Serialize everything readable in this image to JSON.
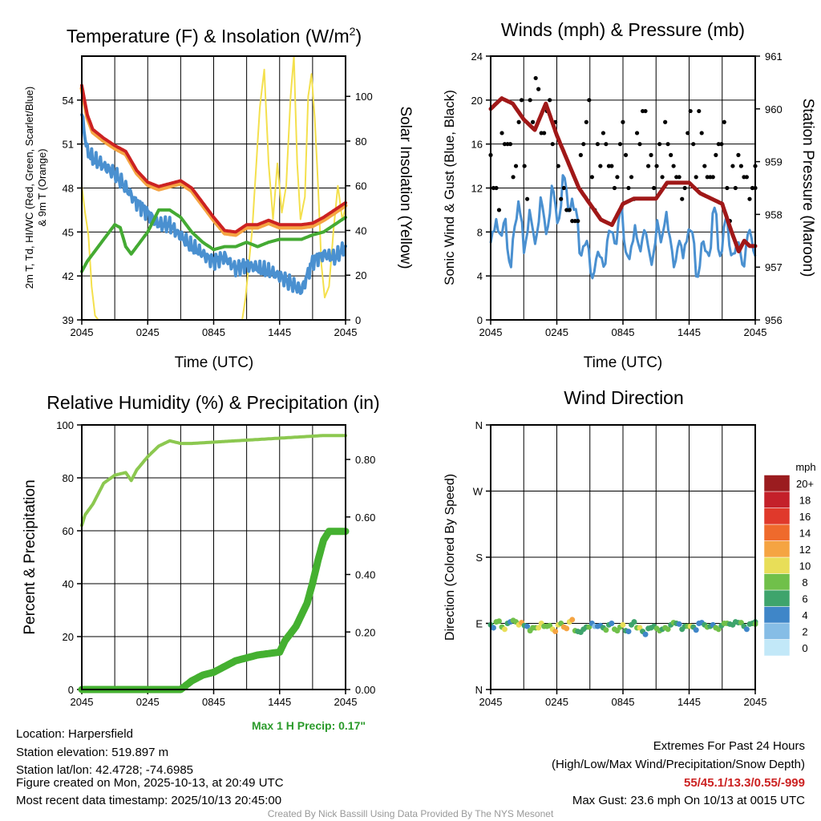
{
  "chart_data": [
    {
      "type": "line",
      "title": "Temperature (F) & Insolation (W/m2)",
      "title_main": "Temperature (F) & Insolation (W/m",
      "title_sup": "2",
      "title_end": ")",
      "xlabel": "Time (UTC)",
      "ylabel_line1": "2m T, Td, HI/WC (Red, Green, Scarlet/Blue)",
      "ylabel_line2": "& 9m T (Orange)",
      "ylabel_right": "Solar Insolation (Yellow)",
      "xlim": [
        0,
        24
      ],
      "xticks": [
        "2045",
        "0245",
        "0845",
        "1445",
        "2045"
      ],
      "ylim": [
        39,
        57
      ],
      "yticks": [
        "39",
        "42",
        "45",
        "48",
        "51",
        "54"
      ],
      "ylim_right": [
        0,
        118
      ],
      "yticks_right": [
        "0",
        "20",
        "40",
        "60",
        "80",
        "100"
      ],
      "series": [
        {
          "name": "Solar Insolation",
          "axis": "right",
          "color": "#f4e04d",
          "width": 2,
          "points": [
            [
              0,
              60
            ],
            [
              0.3,
              48
            ],
            [
              0.6,
              38
            ],
            [
              0.9,
              15
            ],
            [
              1.2,
              2
            ],
            [
              1.5,
              0
            ],
            [
              14.6,
              0
            ],
            [
              14.9,
              10
            ],
            [
              15.5,
              40
            ],
            [
              16.2,
              95
            ],
            [
              16.6,
              112
            ],
            [
              17.0,
              70
            ],
            [
              17.4,
              45
            ],
            [
              17.8,
              70
            ],
            [
              18.2,
              48
            ],
            [
              18.6,
              60
            ],
            [
              19.0,
              100
            ],
            [
              19.3,
              118
            ],
            [
              19.6,
              70
            ],
            [
              19.9,
              45
            ],
            [
              20.3,
              55
            ],
            [
              20.6,
              100
            ],
            [
              20.9,
              110
            ],
            [
              21.2,
              90
            ],
            [
              21.5,
              60
            ],
            [
              21.8,
              25
            ],
            [
              22.1,
              10
            ],
            [
              22.5,
              15
            ],
            [
              22.9,
              40
            ],
            [
              23.3,
              60
            ],
            [
              23.7,
              45
            ],
            [
              24,
              50
            ]
          ]
        },
        {
          "name": "9m T",
          "axis": "left",
          "color": "#f5a442",
          "width": 5,
          "points": [
            [
              0,
              54.8
            ],
            [
              0.5,
              52.8
            ],
            [
              1,
              51.8
            ],
            [
              2,
              51.2
            ],
            [
              3,
              50.7
            ],
            [
              4,
              50.3
            ],
            [
              5,
              49
            ],
            [
              6,
              48.2
            ],
            [
              7,
              47.9
            ],
            [
              8,
              48.1
            ],
            [
              9,
              48.3
            ],
            [
              10,
              47.8
            ],
            [
              11,
              46.8
            ],
            [
              12,
              45.8
            ],
            [
              13,
              44.9
            ],
            [
              14,
              44.8
            ],
            [
              15,
              45.3
            ],
            [
              16,
              45.3
            ],
            [
              17,
              45.6
            ],
            [
              18,
              45.3
            ],
            [
              19,
              45.3
            ],
            [
              20,
              45.3
            ],
            [
              21,
              45.4
            ],
            [
              22,
              45.8
            ],
            [
              23,
              46.3
            ],
            [
              24,
              46.8
            ]
          ]
        },
        {
          "name": "2m T",
          "axis": "left",
          "color": "#cc2222",
          "width": 4,
          "points": [
            [
              0,
              55
            ],
            [
              0.5,
              53
            ],
            [
              1,
              52
            ],
            [
              2,
              51.4
            ],
            [
              3,
              50.9
            ],
            [
              4,
              50.5
            ],
            [
              5,
              49.2
            ],
            [
              6,
              48.4
            ],
            [
              7,
              48.1
            ],
            [
              8,
              48.3
            ],
            [
              9,
              48.5
            ],
            [
              10,
              48
            ],
            [
              11,
              47
            ],
            [
              12,
              46
            ],
            [
              13,
              45.1
            ],
            [
              14,
              45
            ],
            [
              15,
              45.5
            ],
            [
              16,
              45.5
            ],
            [
              17,
              45.8
            ],
            [
              18,
              45.5
            ],
            [
              19,
              45.5
            ],
            [
              20,
              45.5
            ],
            [
              21,
              45.6
            ],
            [
              22,
              46
            ],
            [
              23,
              46.5
            ],
            [
              24,
              47
            ]
          ]
        },
        {
          "name": "HI/WC",
          "axis": "left",
          "color": "#4a90d0",
          "width": 4,
          "jitter": 0.6,
          "points": [
            [
              0,
              53
            ],
            [
              0.5,
              50.5
            ],
            [
              1,
              50
            ],
            [
              2,
              49.5
            ],
            [
              3,
              49
            ],
            [
              4,
              48
            ],
            [
              5,
              47
            ],
            [
              6,
              46.3
            ],
            [
              7,
              45.5
            ],
            [
              8,
              45.5
            ],
            [
              9,
              44.7
            ],
            [
              10,
              44
            ],
            [
              11,
              43.5
            ],
            [
              12,
              43
            ],
            [
              13,
              43.3
            ],
            [
              14,
              42.5
            ],
            [
              15,
              42.8
            ],
            [
              16,
              42.5
            ],
            [
              17,
              42.3
            ],
            [
              18,
              42
            ],
            [
              19,
              41.5
            ],
            [
              20,
              41
            ],
            [
              21,
              43
            ],
            [
              22,
              43.5
            ],
            [
              23,
              43.2
            ],
            [
              24,
              44
            ]
          ]
        },
        {
          "name": "Td",
          "axis": "left",
          "color": "#44aa33",
          "width": 4,
          "points": [
            [
              0,
              42.3
            ],
            [
              0.5,
              43
            ],
            [
              1,
              43.5
            ],
            [
              2,
              44.5
            ],
            [
              3,
              45.5
            ],
            [
              3.5,
              45.3
            ],
            [
              4,
              44
            ],
            [
              4.5,
              43.5
            ],
            [
              5,
              44
            ],
            [
              6,
              45
            ],
            [
              7,
              46.5
            ],
            [
              8,
              46.5
            ],
            [
              9,
              46
            ],
            [
              10,
              45
            ],
            [
              11,
              44.3
            ],
            [
              12,
              43.8
            ],
            [
              13,
              44
            ],
            [
              14,
              44
            ],
            [
              15,
              44.3
            ],
            [
              16,
              44
            ],
            [
              17,
              44.3
            ],
            [
              18,
              44.5
            ],
            [
              19,
              44.5
            ],
            [
              20,
              44.5
            ],
            [
              21,
              44.8
            ],
            [
              22,
              45
            ],
            [
              23,
              45.5
            ],
            [
              24,
              46
            ]
          ]
        }
      ]
    },
    {
      "type": "line+scatter",
      "title": "Winds (mph) & Pressure (mb)",
      "xlabel": "Time (UTC)",
      "ylabel": "Sonic Wind & Gust (Blue, Black)",
      "ylabel_right": "Station Pressure (Maroon)",
      "xlim": [
        0,
        24
      ],
      "xticks": [
        "2045",
        "0245",
        "0845",
        "1445",
        "2045"
      ],
      "ylim": [
        0,
        24
      ],
      "yticks": [
        "0",
        "4",
        "8",
        "12",
        "16",
        "20",
        "24"
      ],
      "ylim_right": [
        956,
        961
      ],
      "yticks_right": [
        "956",
        "957",
        "958",
        "959",
        "960",
        "961"
      ],
      "wind_color": "#4a90d0",
      "gust_color": "#000000",
      "pressure_color": "#a01818",
      "wind": [
        7,
        9,
        8,
        6,
        8,
        10,
        7,
        9,
        8,
        10,
        9,
        11,
        10,
        12,
        11,
        9,
        7,
        6,
        5,
        5,
        6,
        7,
        8,
        9,
        7,
        6,
        8,
        7,
        7,
        6,
        8,
        9,
        7,
        6,
        6,
        8,
        7,
        5,
        6,
        7,
        9,
        7,
        8,
        7,
        6,
        6,
        7,
        7
      ],
      "gust": [
        15,
        12,
        17,
        16,
        13,
        18,
        14,
        20,
        22,
        17,
        19,
        16,
        14,
        12,
        10,
        9,
        15,
        18,
        13,
        16,
        17,
        14,
        12,
        16,
        15,
        13,
        17,
        19,
        14,
        12,
        16,
        18,
        15,
        13,
        11,
        17,
        16,
        19,
        14,
        13,
        15,
        16,
        12,
        14,
        15,
        13,
        11,
        12
      ],
      "pressure": [
        [
          0,
          960
        ],
        [
          0.5,
          960.1
        ],
        [
          1,
          960.2
        ],
        [
          2,
          960.1
        ],
        [
          3,
          959.8
        ],
        [
          4,
          959.6
        ],
        [
          5,
          960.1
        ],
        [
          6,
          959.5
        ],
        [
          7,
          959
        ],
        [
          8,
          958.5
        ],
        [
          9,
          958.2
        ],
        [
          10,
          957.9
        ],
        [
          11,
          957.8
        ],
        [
          12,
          958.2
        ],
        [
          13,
          958.3
        ],
        [
          14,
          958.3
        ],
        [
          15,
          958.3
        ],
        [
          16,
          958.6
        ],
        [
          17,
          958.6
        ],
        [
          18,
          958.6
        ],
        [
          19,
          958.4
        ],
        [
          20,
          958.3
        ],
        [
          21,
          958.2
        ],
        [
          21.8,
          957.7
        ],
        [
          22.5,
          957.3
        ],
        [
          23,
          957.5
        ],
        [
          23.5,
          957.4
        ],
        [
          24,
          957.4
        ]
      ]
    },
    {
      "type": "line",
      "title": "Relative Humidity (%) & Precipitation (in)",
      "ylabel": "Percent & Precipitation",
      "xlim": [
        0,
        24
      ],
      "xticks": [
        "2045",
        "0245",
        "0845",
        "1445",
        "2045"
      ],
      "ylim": [
        0,
        100
      ],
      "yticks": [
        "0",
        "20",
        "40",
        "60",
        "80",
        "100"
      ],
      "ylim_right": [
        0,
        0.92
      ],
      "yticks_right": [
        "0.00",
        "0.20",
        "0.40",
        "0.60",
        "0.80"
      ],
      "annotation": "Max 1 H Precip: 0.17\"",
      "series": [
        {
          "name": "Relative Humidity",
          "axis": "left",
          "color": "#8cc850",
          "width": 4,
          "points": [
            [
              0,
              62
            ],
            [
              0.3,
              66
            ],
            [
              1,
              70
            ],
            [
              1.5,
              74
            ],
            [
              2,
              78
            ],
            [
              3,
              81
            ],
            [
              4,
              82
            ],
            [
              4.5,
              79
            ],
            [
              5,
              83
            ],
            [
              6,
              88
            ],
            [
              7,
              92
            ],
            [
              8,
              94
            ],
            [
              9,
              93
            ],
            [
              10,
              93
            ],
            [
              12,
              93.5
            ],
            [
              14,
              94
            ],
            [
              16,
              94.5
            ],
            [
              18,
              95
            ],
            [
              20,
              95.5
            ],
            [
              22,
              96
            ],
            [
              24,
              96
            ]
          ]
        },
        {
          "name": "Precipitation",
          "axis": "right",
          "color": "#44b030",
          "width": 9,
          "points": [
            [
              0,
              0
            ],
            [
              9,
              0
            ],
            [
              10,
              0.03
            ],
            [
              11,
              0.05
            ],
            [
              12,
              0.06
            ],
            [
              13,
              0.08
            ],
            [
              14,
              0.1
            ],
            [
              15,
              0.11
            ],
            [
              16,
              0.12
            ],
            [
              17,
              0.125
            ],
            [
              18,
              0.13
            ],
            [
              18.5,
              0.17
            ],
            [
              19.5,
              0.22
            ],
            [
              20.5,
              0.3
            ],
            [
              21,
              0.37
            ],
            [
              21.5,
              0.45
            ],
            [
              22,
              0.52
            ],
            [
              22.5,
              0.55
            ],
            [
              24,
              0.55
            ]
          ]
        }
      ]
    },
    {
      "type": "scatter",
      "title": "Wind Direction",
      "ylabel": "Direction (Colored By Speed)",
      "xlim": [
        0,
        24
      ],
      "xticks": [
        "2045",
        "0245",
        "0845",
        "1445",
        "2045"
      ],
      "ylim": [
        0,
        360
      ],
      "yticks": [
        "N",
        "E",
        "S",
        "W",
        "N"
      ],
      "direction": [
        88,
        92,
        85,
        90,
        94,
        88,
        87,
        80,
        84,
        90,
        86,
        82,
        88,
        85,
        92,
        80,
        78,
        85,
        90,
        86,
        84,
        88,
        82,
        85,
        80,
        88,
        84,
        79,
        83,
        86,
        80,
        84,
        88,
        90,
        82,
        86,
        85,
        90,
        88,
        86,
        84,
        87,
        90,
        88,
        91,
        86,
        89,
        92
      ],
      "colorbar": {
        "title": "mph",
        "labels": [
          "0",
          "2",
          "4",
          "6",
          "8",
          "10",
          "12",
          "14",
          "16",
          "18",
          "20+"
        ],
        "colors": [
          "#c2e8f8",
          "#86bde6",
          "#3f86c8",
          "#3ea46c",
          "#70c04a",
          "#e8de58",
          "#f5a442",
          "#ef6a2c",
          "#e0392b",
          "#c4202a",
          "#9b1c1f"
        ]
      }
    }
  ],
  "info": {
    "location": "Location: Harpersfield",
    "elevation": "Station elevation: 519.897 m",
    "latlon": "Station lat/lon: 42.4728; -74.6985",
    "created": "Figure created on Mon, 2025-10-13, at 20:49 UTC",
    "recent": "Most recent data timestamp: 2025/10/13 20:45:00",
    "extremes_title": "Extremes For Past 24 Hours",
    "extremes_legend": "(High/Low/Max Wind/Precipitation/Snow Depth)",
    "extremes_values": "55/45.1/13.3/0.55/-999",
    "max_gust": "Max Gust: 23.6 mph On 10/13 at 0015 UTC",
    "credit": "Created By Nick Bassill Using Data Provided By The NYS Mesonet"
  }
}
